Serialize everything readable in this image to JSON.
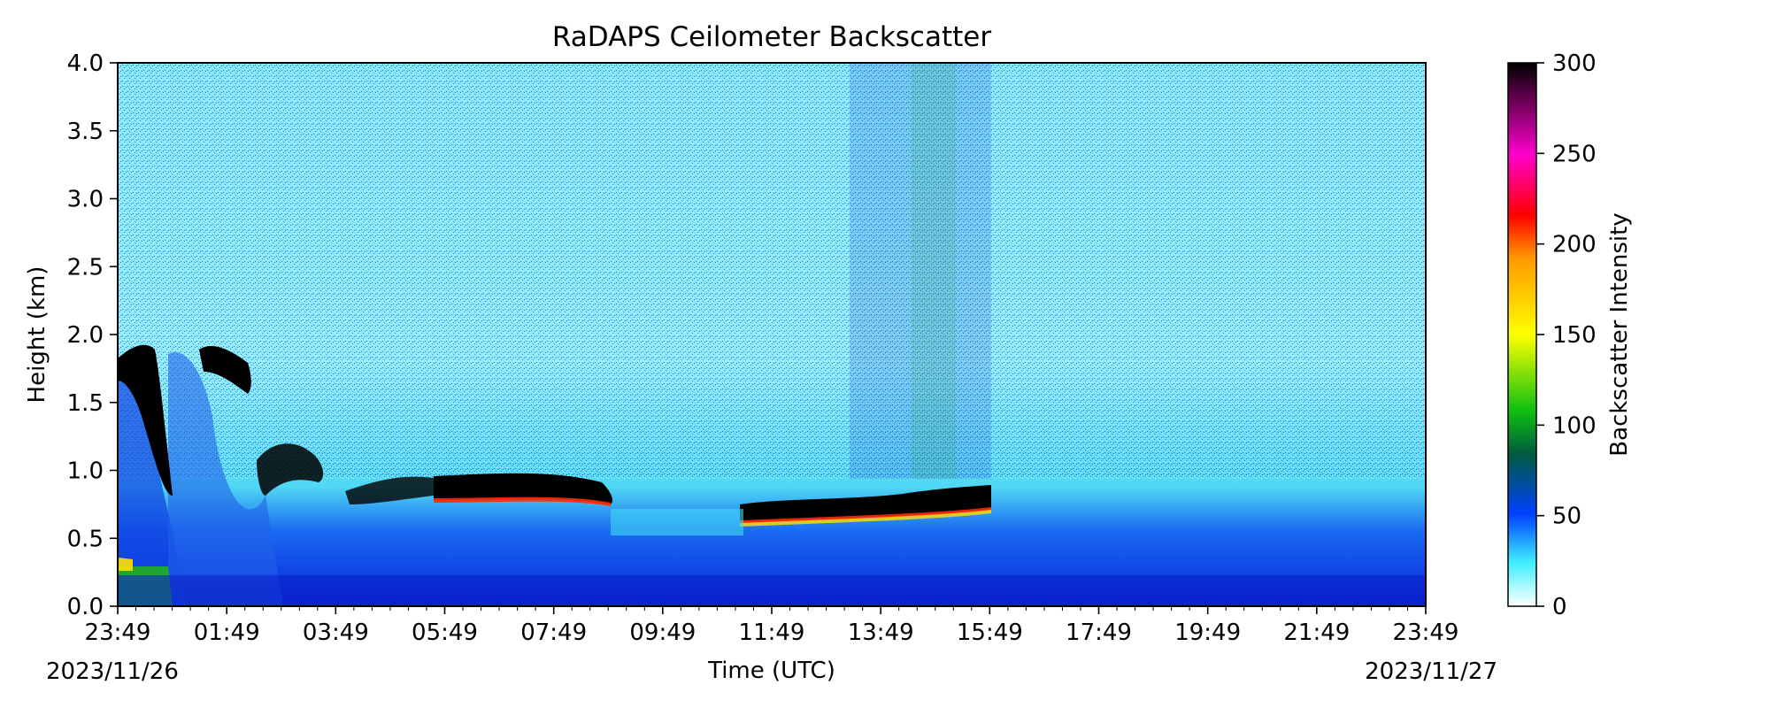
{
  "chart_data": {
    "type": "heatmap",
    "title": "RaDAPS Ceilometer Backscatter",
    "xlabel": "Time (UTC)",
    "ylabel": "Height (km)",
    "x_start_date": "2023/11/26",
    "x_end_date": "2023/11/27",
    "x_ticks": [
      "23:49",
      "01:49",
      "03:49",
      "05:49",
      "07:49",
      "09:49",
      "11:49",
      "13:49",
      "15:49",
      "17:49",
      "19:49",
      "21:49",
      "23:49"
    ],
    "y_ticks": [
      "0.0",
      "0.5",
      "1.0",
      "1.5",
      "2.0",
      "2.5",
      "3.0",
      "3.5",
      "4.0"
    ],
    "ylim": [
      0,
      4.0
    ],
    "colorbar": {
      "label": "Backscatter Intensity",
      "ticks": [
        "0",
        "50",
        "100",
        "150",
        "200",
        "250",
        "300"
      ],
      "range": [
        0,
        300
      ]
    },
    "features": [
      {
        "description": "cloud layer",
        "time_range": [
          "23:49",
          "01:49"
        ],
        "height_km": [
          1.5,
          1.9
        ]
      },
      {
        "description": "cloud layer",
        "time_range": [
          "01:49",
          "02:49"
        ],
        "height_km": [
          1.6,
          1.85
        ]
      },
      {
        "description": "cloud layer",
        "time_range": [
          "04:49",
          "08:49"
        ],
        "height_km": [
          0.75,
          0.95
        ]
      },
      {
        "description": "cloud layer",
        "time_range": [
          "10:49",
          "15:49"
        ],
        "height_km": [
          0.65,
          0.85
        ]
      }
    ]
  }
}
